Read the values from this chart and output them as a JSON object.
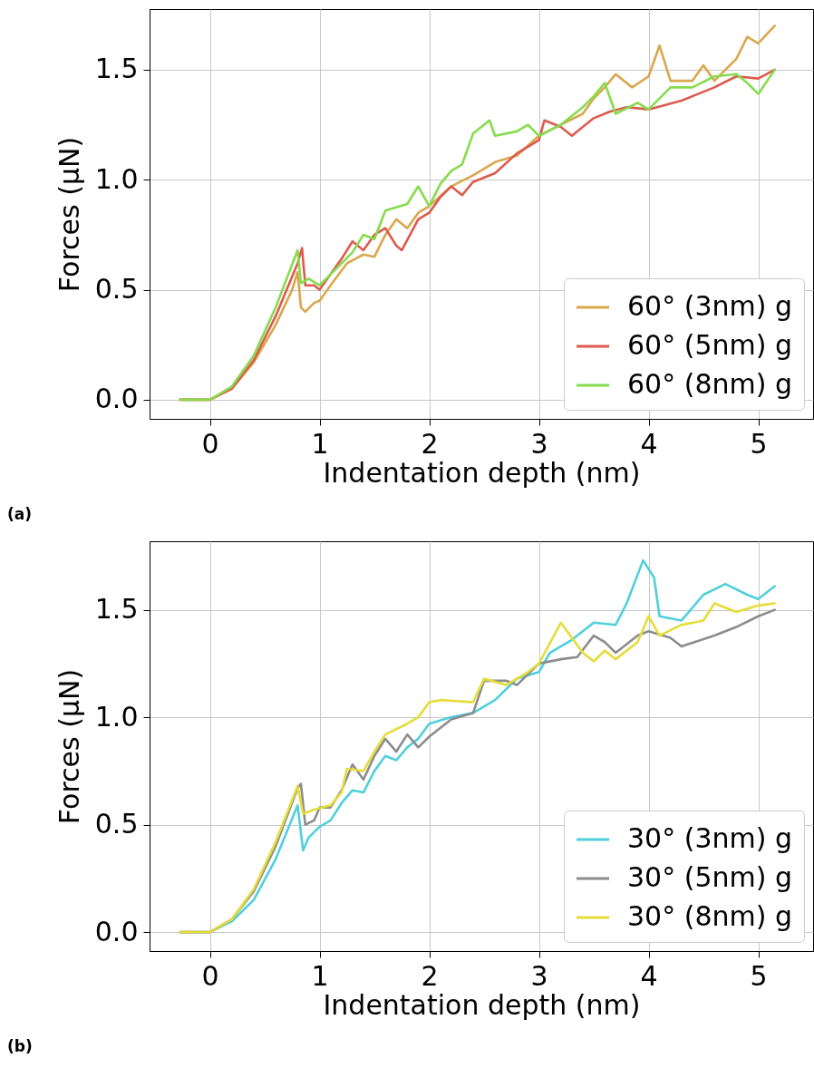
{
  "chart_data": [
    {
      "type": "line",
      "xlabel": "Indentation depth (nm)",
      "ylabel": "Forces (μN)",
      "annotations": [
        "(a)"
      ],
      "xlim": [
        -0.55,
        5.5
      ],
      "ylim": [
        -0.087,
        1.776
      ],
      "xticks": [
        0,
        1,
        2,
        3,
        4,
        5
      ],
      "yticks": [
        {
          "value": 0,
          "label": "0.0"
        },
        {
          "value": 0.5,
          "label": "0.5"
        },
        {
          "value": 1,
          "label": "1.0"
        },
        {
          "value": 1.5,
          "label": "1.5"
        }
      ],
      "grid": true,
      "legend": "bottom right",
      "line_style": "solid",
      "series": [
        {
          "name": "60° (3nm) g",
          "color": "#d9a74e",
          "x": [
            -0.27,
            0,
            0.2,
            0.4,
            0.6,
            0.75,
            0.8,
            0.83,
            0.87,
            0.95,
            1.0,
            1.1,
            1.25,
            1.4,
            1.5,
            1.6,
            1.7,
            1.8,
            1.9,
            2.0,
            2.2,
            2.4,
            2.5,
            2.6,
            2.8,
            3.0,
            3.2,
            3.4,
            3.5,
            3.6,
            3.7,
            3.85,
            4.0,
            4.1,
            4.2,
            4.4,
            4.5,
            4.6,
            4.8,
            4.9,
            5.0,
            5.15
          ],
          "values": [
            0,
            0,
            0.05,
            0.17,
            0.34,
            0.5,
            0.58,
            0.42,
            0.4,
            0.44,
            0.45,
            0.52,
            0.62,
            0.66,
            0.65,
            0.75,
            0.82,
            0.78,
            0.85,
            0.88,
            0.97,
            1.02,
            1.05,
            1.08,
            1.11,
            1.2,
            1.25,
            1.3,
            1.37,
            1.42,
            1.48,
            1.42,
            1.47,
            1.61,
            1.45,
            1.45,
            1.52,
            1.45,
            1.55,
            1.65,
            1.62,
            1.7
          ]
        },
        {
          "name": "60° (5nm) g",
          "color": "#dd5a4e",
          "x": [
            -0.27,
            0,
            0.2,
            0.4,
            0.6,
            0.8,
            0.84,
            0.87,
            0.95,
            1.0,
            1.1,
            1.2,
            1.3,
            1.4,
            1.5,
            1.6,
            1.7,
            1.75,
            1.9,
            2.0,
            2.1,
            2.2,
            2.3,
            2.4,
            2.6,
            2.8,
            3.0,
            3.05,
            3.2,
            3.3,
            3.5,
            3.65,
            3.8,
            4.0,
            4.3,
            4.6,
            4.8,
            5.0,
            5.15
          ],
          "values": [
            0,
            0,
            0.05,
            0.18,
            0.38,
            0.62,
            0.69,
            0.52,
            0.52,
            0.5,
            0.57,
            0.64,
            0.72,
            0.68,
            0.75,
            0.78,
            0.7,
            0.68,
            0.82,
            0.85,
            0.92,
            0.97,
            0.93,
            0.99,
            1.03,
            1.12,
            1.18,
            1.27,
            1.24,
            1.2,
            1.28,
            1.31,
            1.33,
            1.32,
            1.36,
            1.42,
            1.47,
            1.46,
            1.5
          ]
        },
        {
          "name": "60° (8nm) g",
          "color": "#86dc4e",
          "x": [
            -0.27,
            0,
            0.2,
            0.4,
            0.6,
            0.8,
            0.83,
            0.9,
            1.0,
            1.1,
            1.3,
            1.4,
            1.5,
            1.6,
            1.8,
            1.9,
            2.0,
            2.1,
            2.2,
            2.3,
            2.4,
            2.55,
            2.6,
            2.8,
            2.9,
            3.0,
            3.2,
            3.4,
            3.5,
            3.6,
            3.7,
            3.9,
            4.0,
            4.2,
            4.4,
            4.6,
            4.8,
            4.9,
            5.0,
            5.15
          ],
          "values": [
            0,
            0,
            0.06,
            0.2,
            0.42,
            0.68,
            0.53,
            0.55,
            0.52,
            0.57,
            0.67,
            0.75,
            0.73,
            0.86,
            0.89,
            0.97,
            0.88,
            0.98,
            1.04,
            1.07,
            1.21,
            1.27,
            1.2,
            1.22,
            1.25,
            1.2,
            1.25,
            1.33,
            1.38,
            1.44,
            1.3,
            1.35,
            1.32,
            1.42,
            1.42,
            1.47,
            1.48,
            1.44,
            1.39,
            1.5
          ]
        }
      ]
    },
    {
      "type": "line",
      "xlabel": "Indentation depth (nm)",
      "ylabel": "Forces (μN)",
      "annotations": [
        "(b)"
      ],
      "xlim": [
        -0.55,
        5.5
      ],
      "ylim": [
        -0.088,
        1.819
      ],
      "xticks": [
        0,
        1,
        2,
        3,
        4,
        5
      ],
      "yticks": [
        {
          "value": 0,
          "label": "0.0"
        },
        {
          "value": 0.5,
          "label": "0.5"
        },
        {
          "value": 1,
          "label": "1.0"
        },
        {
          "value": 1.5,
          "label": "1.5"
        }
      ],
      "grid": true,
      "legend": "bottom right",
      "line_style": "solid",
      "series": [
        {
          "name": "30° (3nm) g",
          "color": "#4fd0dc",
          "x": [
            -0.27,
            0,
            0.2,
            0.4,
            0.6,
            0.8,
            0.85,
            0.9,
            1.0,
            1.1,
            1.2,
            1.3,
            1.4,
            1.5,
            1.6,
            1.7,
            1.8,
            1.9,
            2.0,
            2.2,
            2.4,
            2.6,
            2.8,
            3.0,
            3.1,
            3.3,
            3.5,
            3.7,
            3.8,
            3.95,
            4.05,
            4.1,
            4.3,
            4.5,
            4.7,
            4.9,
            5.0,
            5.15
          ],
          "values": [
            0,
            0,
            0.05,
            0.15,
            0.34,
            0.59,
            0.38,
            0.44,
            0.49,
            0.52,
            0.6,
            0.66,
            0.65,
            0.75,
            0.82,
            0.8,
            0.86,
            0.9,
            0.97,
            1.0,
            1.02,
            1.08,
            1.18,
            1.21,
            1.3,
            1.36,
            1.44,
            1.43,
            1.53,
            1.73,
            1.65,
            1.47,
            1.45,
            1.57,
            1.62,
            1.57,
            1.55,
            1.61
          ]
        },
        {
          "name": "30° (5nm) g",
          "color": "#8c8c8c",
          "x": [
            -0.27,
            0,
            0.2,
            0.4,
            0.6,
            0.8,
            0.83,
            0.87,
            0.95,
            1.0,
            1.1,
            1.2,
            1.3,
            1.4,
            1.5,
            1.6,
            1.7,
            1.8,
            1.9,
            2.0,
            2.2,
            2.4,
            2.5,
            2.7,
            2.8,
            3.0,
            3.2,
            3.35,
            3.5,
            3.6,
            3.7,
            3.9,
            4.0,
            4.2,
            4.3,
            4.6,
            4.8,
            5.0,
            5.15
          ],
          "values": [
            0,
            0,
            0.06,
            0.19,
            0.4,
            0.67,
            0.69,
            0.5,
            0.52,
            0.58,
            0.58,
            0.66,
            0.78,
            0.71,
            0.82,
            0.9,
            0.84,
            0.92,
            0.86,
            0.91,
            0.99,
            1.02,
            1.17,
            1.17,
            1.15,
            1.25,
            1.27,
            1.28,
            1.38,
            1.35,
            1.3,
            1.38,
            1.4,
            1.37,
            1.33,
            1.38,
            1.42,
            1.47,
            1.5
          ]
        },
        {
          "name": "30° (8nm) g",
          "color": "#e6dc3a",
          "x": [
            -0.27,
            0,
            0.2,
            0.4,
            0.6,
            0.8,
            0.85,
            0.95,
            1.1,
            1.2,
            1.25,
            1.4,
            1.5,
            1.6,
            1.8,
            1.9,
            2.0,
            2.1,
            2.4,
            2.5,
            2.7,
            2.9,
            3.0,
            3.2,
            3.4,
            3.5,
            3.6,
            3.7,
            3.9,
            4.0,
            4.1,
            4.3,
            4.5,
            4.6,
            4.8,
            5.0,
            5.15
          ],
          "values": [
            0,
            0,
            0.06,
            0.2,
            0.42,
            0.68,
            0.55,
            0.57,
            0.59,
            0.65,
            0.76,
            0.75,
            0.84,
            0.92,
            0.97,
            1.0,
            1.07,
            1.08,
            1.07,
            1.18,
            1.15,
            1.21,
            1.25,
            1.44,
            1.3,
            1.26,
            1.31,
            1.27,
            1.35,
            1.47,
            1.38,
            1.43,
            1.45,
            1.53,
            1.49,
            1.52,
            1.53
          ]
        }
      ]
    }
  ]
}
